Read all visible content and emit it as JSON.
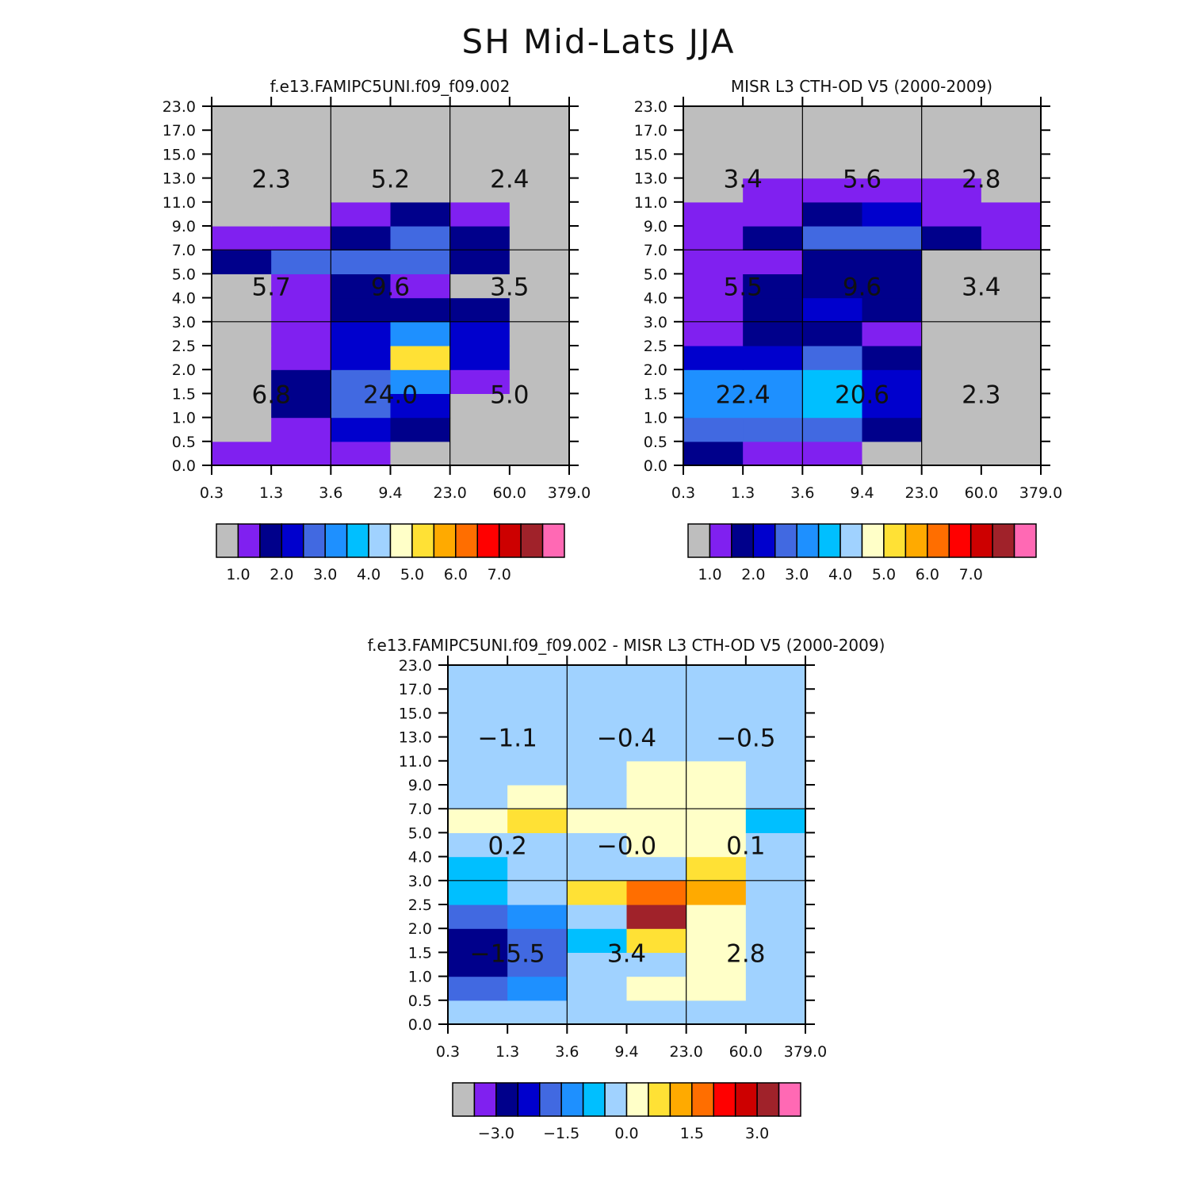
{
  "title": "SH Mid-Lats JJA",
  "color_levels": [
    "#bebebe",
    "#8020f0",
    "#00008b",
    "#0000cd",
    "#4169e1",
    "#1e90ff",
    "#00bfff",
    "#a0d2ff",
    "#ffffc8",
    "#ffe135",
    "#ffaa00",
    "#ff6e00",
    "#ff0000",
    "#cd0000",
    "#a0222a",
    "#ff69b4"
  ],
  "y_tick_labels": [
    "0.0",
    "0.5",
    "1.0",
    "1.5",
    "2.0",
    "2.5",
    "3.0",
    "4.0",
    "5.0",
    "7.0",
    "9.0",
    "11.0",
    "13.0",
    "15.0",
    "17.0",
    "23.0"
  ],
  "x_tick_labels": [
    "0.3",
    "1.3",
    "3.6",
    "9.4",
    "23.0",
    "60.0",
    "379.0"
  ],
  "chart_data": [
    {
      "type": "heatmap",
      "title": "f.e13.FAMIPC5UNI.f09_f09.002",
      "rows_bottom_to_top": [
        [
          1,
          1,
          1,
          0,
          0,
          0
        ],
        [
          0,
          1,
          3,
          2,
          0,
          0
        ],
        [
          0,
          2,
          4,
          3,
          0,
          0
        ],
        [
          0,
          2,
          4,
          5,
          1,
          0
        ],
        [
          0,
          1,
          3,
          9,
          3,
          0
        ],
        [
          0,
          1,
          3,
          5,
          3,
          0
        ],
        [
          0,
          1,
          2,
          2,
          2,
          0
        ],
        [
          0,
          1,
          2,
          1,
          0,
          0
        ],
        [
          2,
          4,
          4,
          4,
          2,
          0
        ],
        [
          1,
          1,
          2,
          4,
          2,
          0
        ],
        [
          0,
          0,
          1,
          2,
          1,
          0
        ],
        [
          0,
          0,
          0,
          0,
          0,
          0
        ],
        [
          0,
          0,
          0,
          0,
          0,
          0
        ],
        [
          0,
          0,
          0,
          0,
          0,
          0
        ],
        [
          0,
          0,
          0,
          0,
          0,
          0
        ]
      ],
      "block_values": [
        [
          "2.3",
          "5.2",
          "2.4"
        ],
        [
          "5.7",
          "9.6",
          "3.5"
        ],
        [
          "6.8",
          "24.0",
          "5.0"
        ]
      ],
      "colorbar_labels": [
        "1.0",
        "2.0",
        "3.0",
        "4.0",
        "5.0",
        "6.0",
        "7.0"
      ]
    },
    {
      "type": "heatmap",
      "title": "MISR L3 CTH-OD V5 (2000-2009)",
      "rows_bottom_to_top": [
        [
          2,
          1,
          1,
          0,
          0,
          0
        ],
        [
          4,
          4,
          4,
          2,
          0,
          0
        ],
        [
          5,
          5,
          6,
          3,
          0,
          0
        ],
        [
          5,
          5,
          6,
          3,
          0,
          0
        ],
        [
          3,
          3,
          4,
          2,
          0,
          0
        ],
        [
          1,
          2,
          2,
          1,
          0,
          0
        ],
        [
          1,
          2,
          3,
          2,
          0,
          0
        ],
        [
          1,
          2,
          2,
          2,
          0,
          0
        ],
        [
          1,
          1,
          2,
          2,
          0,
          0
        ],
        [
          1,
          2,
          4,
          4,
          2,
          1
        ],
        [
          1,
          1,
          2,
          3,
          1,
          1
        ],
        [
          0,
          1,
          1,
          1,
          1,
          0
        ],
        [
          0,
          0,
          0,
          0,
          0,
          0
        ],
        [
          0,
          0,
          0,
          0,
          0,
          0
        ],
        [
          0,
          0,
          0,
          0,
          0,
          0
        ]
      ],
      "block_values": [
        [
          "3.4",
          "5.6",
          "2.8"
        ],
        [
          "5.5",
          "9.6",
          "3.4"
        ],
        [
          "22.4",
          "20.6",
          "2.3"
        ]
      ],
      "colorbar_labels": [
        "1.0",
        "2.0",
        "3.0",
        "4.0",
        "5.0",
        "6.0",
        "7.0"
      ]
    },
    {
      "type": "heatmap",
      "title": "f.e13.FAMIPC5UNI.f09_f09.002 - MISR L3 CTH-OD V5 (2000-2009)",
      "rows_bottom_to_top": [
        [
          7,
          7,
          7,
          7,
          7,
          7
        ],
        [
          4,
          5,
          7,
          8,
          8,
          7
        ],
        [
          2,
          4,
          7,
          7,
          8,
          7
        ],
        [
          2,
          4,
          6,
          9,
          8,
          7
        ],
        [
          4,
          5,
          7,
          14,
          8,
          7
        ],
        [
          6,
          7,
          9,
          11,
          10,
          7
        ],
        [
          6,
          7,
          7,
          7,
          9,
          7
        ],
        [
          7,
          7,
          7,
          8,
          8,
          7
        ],
        [
          8,
          9,
          8,
          8,
          8,
          6
        ],
        [
          7,
          8,
          7,
          8,
          8,
          7
        ],
        [
          7,
          7,
          7,
          8,
          8,
          7
        ],
        [
          7,
          7,
          7,
          7,
          7,
          7
        ],
        [
          7,
          7,
          7,
          7,
          7,
          7
        ],
        [
          7,
          7,
          7,
          7,
          7,
          7
        ],
        [
          7,
          7,
          7,
          7,
          7,
          7
        ]
      ],
      "block_values": [
        [
          "-1.1",
          "-0.4",
          "-0.5"
        ],
        [
          "0.2",
          "-0.0",
          "0.1"
        ],
        [
          "-15.5",
          "3.4",
          "2.8"
        ]
      ],
      "colorbar_labels": [
        "-3.0",
        "-1.5",
        "0.0",
        "1.5",
        "3.0"
      ]
    }
  ]
}
